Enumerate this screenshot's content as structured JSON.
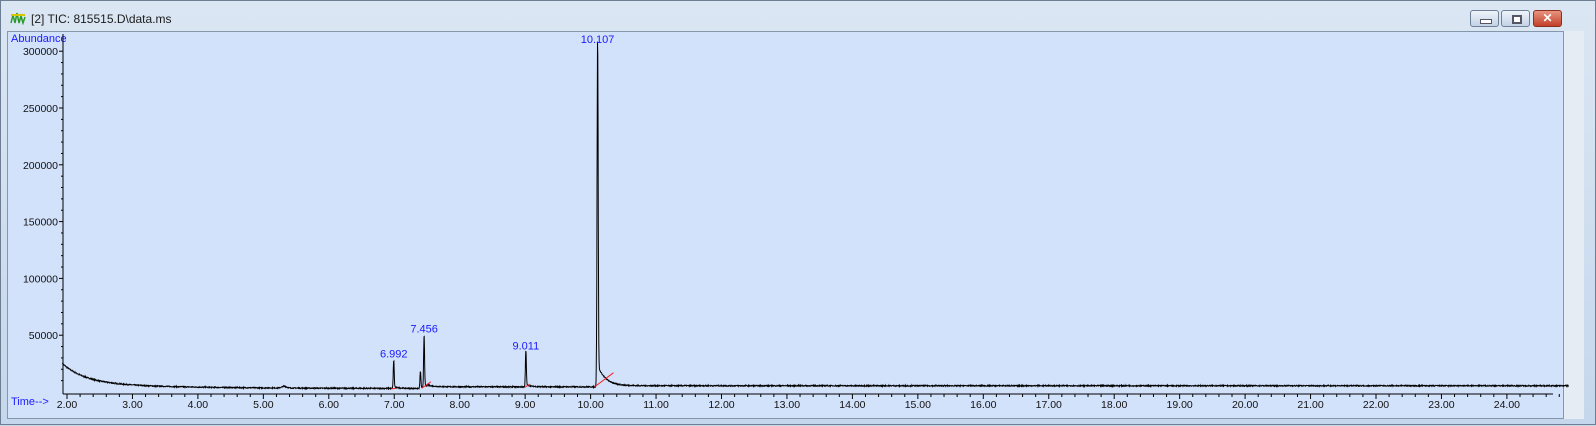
{
  "window": {
    "title": "[2] TIC: 815515.D\\data.ms",
    "icon": "chromatogram-icon",
    "buttons": [
      "minimize",
      "maximize",
      "close"
    ]
  },
  "chart_data": {
    "type": "line",
    "ylabel": "Abundance",
    "xlabel": "Time-->",
    "xlim": [
      1.93,
      25.0
    ],
    "ylim": [
      0,
      315000
    ],
    "x_ticks": [
      "2.00",
      "3.00",
      "4.00",
      "5.00",
      "6.00",
      "7.00",
      "8.00",
      "9.00",
      "10.00",
      "11.00",
      "12.00",
      "13.00",
      "14.00",
      "15.00",
      "16.00",
      "17.00",
      "18.00",
      "19.00",
      "20.00",
      "21.00",
      "22.00",
      "23.00",
      "24.00"
    ],
    "y_ticks": [
      "50000",
      "100000",
      "150000",
      "200000",
      "250000",
      "300000"
    ],
    "peak_labels": [
      "6.992",
      "7.456",
      "9.011",
      "10.107"
    ],
    "peaks": [
      {
        "rt": 6.992,
        "height": 25000
      },
      {
        "rt": 7.4,
        "height": 15000
      },
      {
        "rt": 7.456,
        "height": 47000
      },
      {
        "rt": 9.011,
        "height": 32000
      },
      {
        "rt": 10.107,
        "height": 305000
      }
    ],
    "colors": {
      "trace": "#000000",
      "labels": "#1a1aff",
      "baseline_integration": "#ff2020",
      "background": "#d3e2fb"
    }
  }
}
